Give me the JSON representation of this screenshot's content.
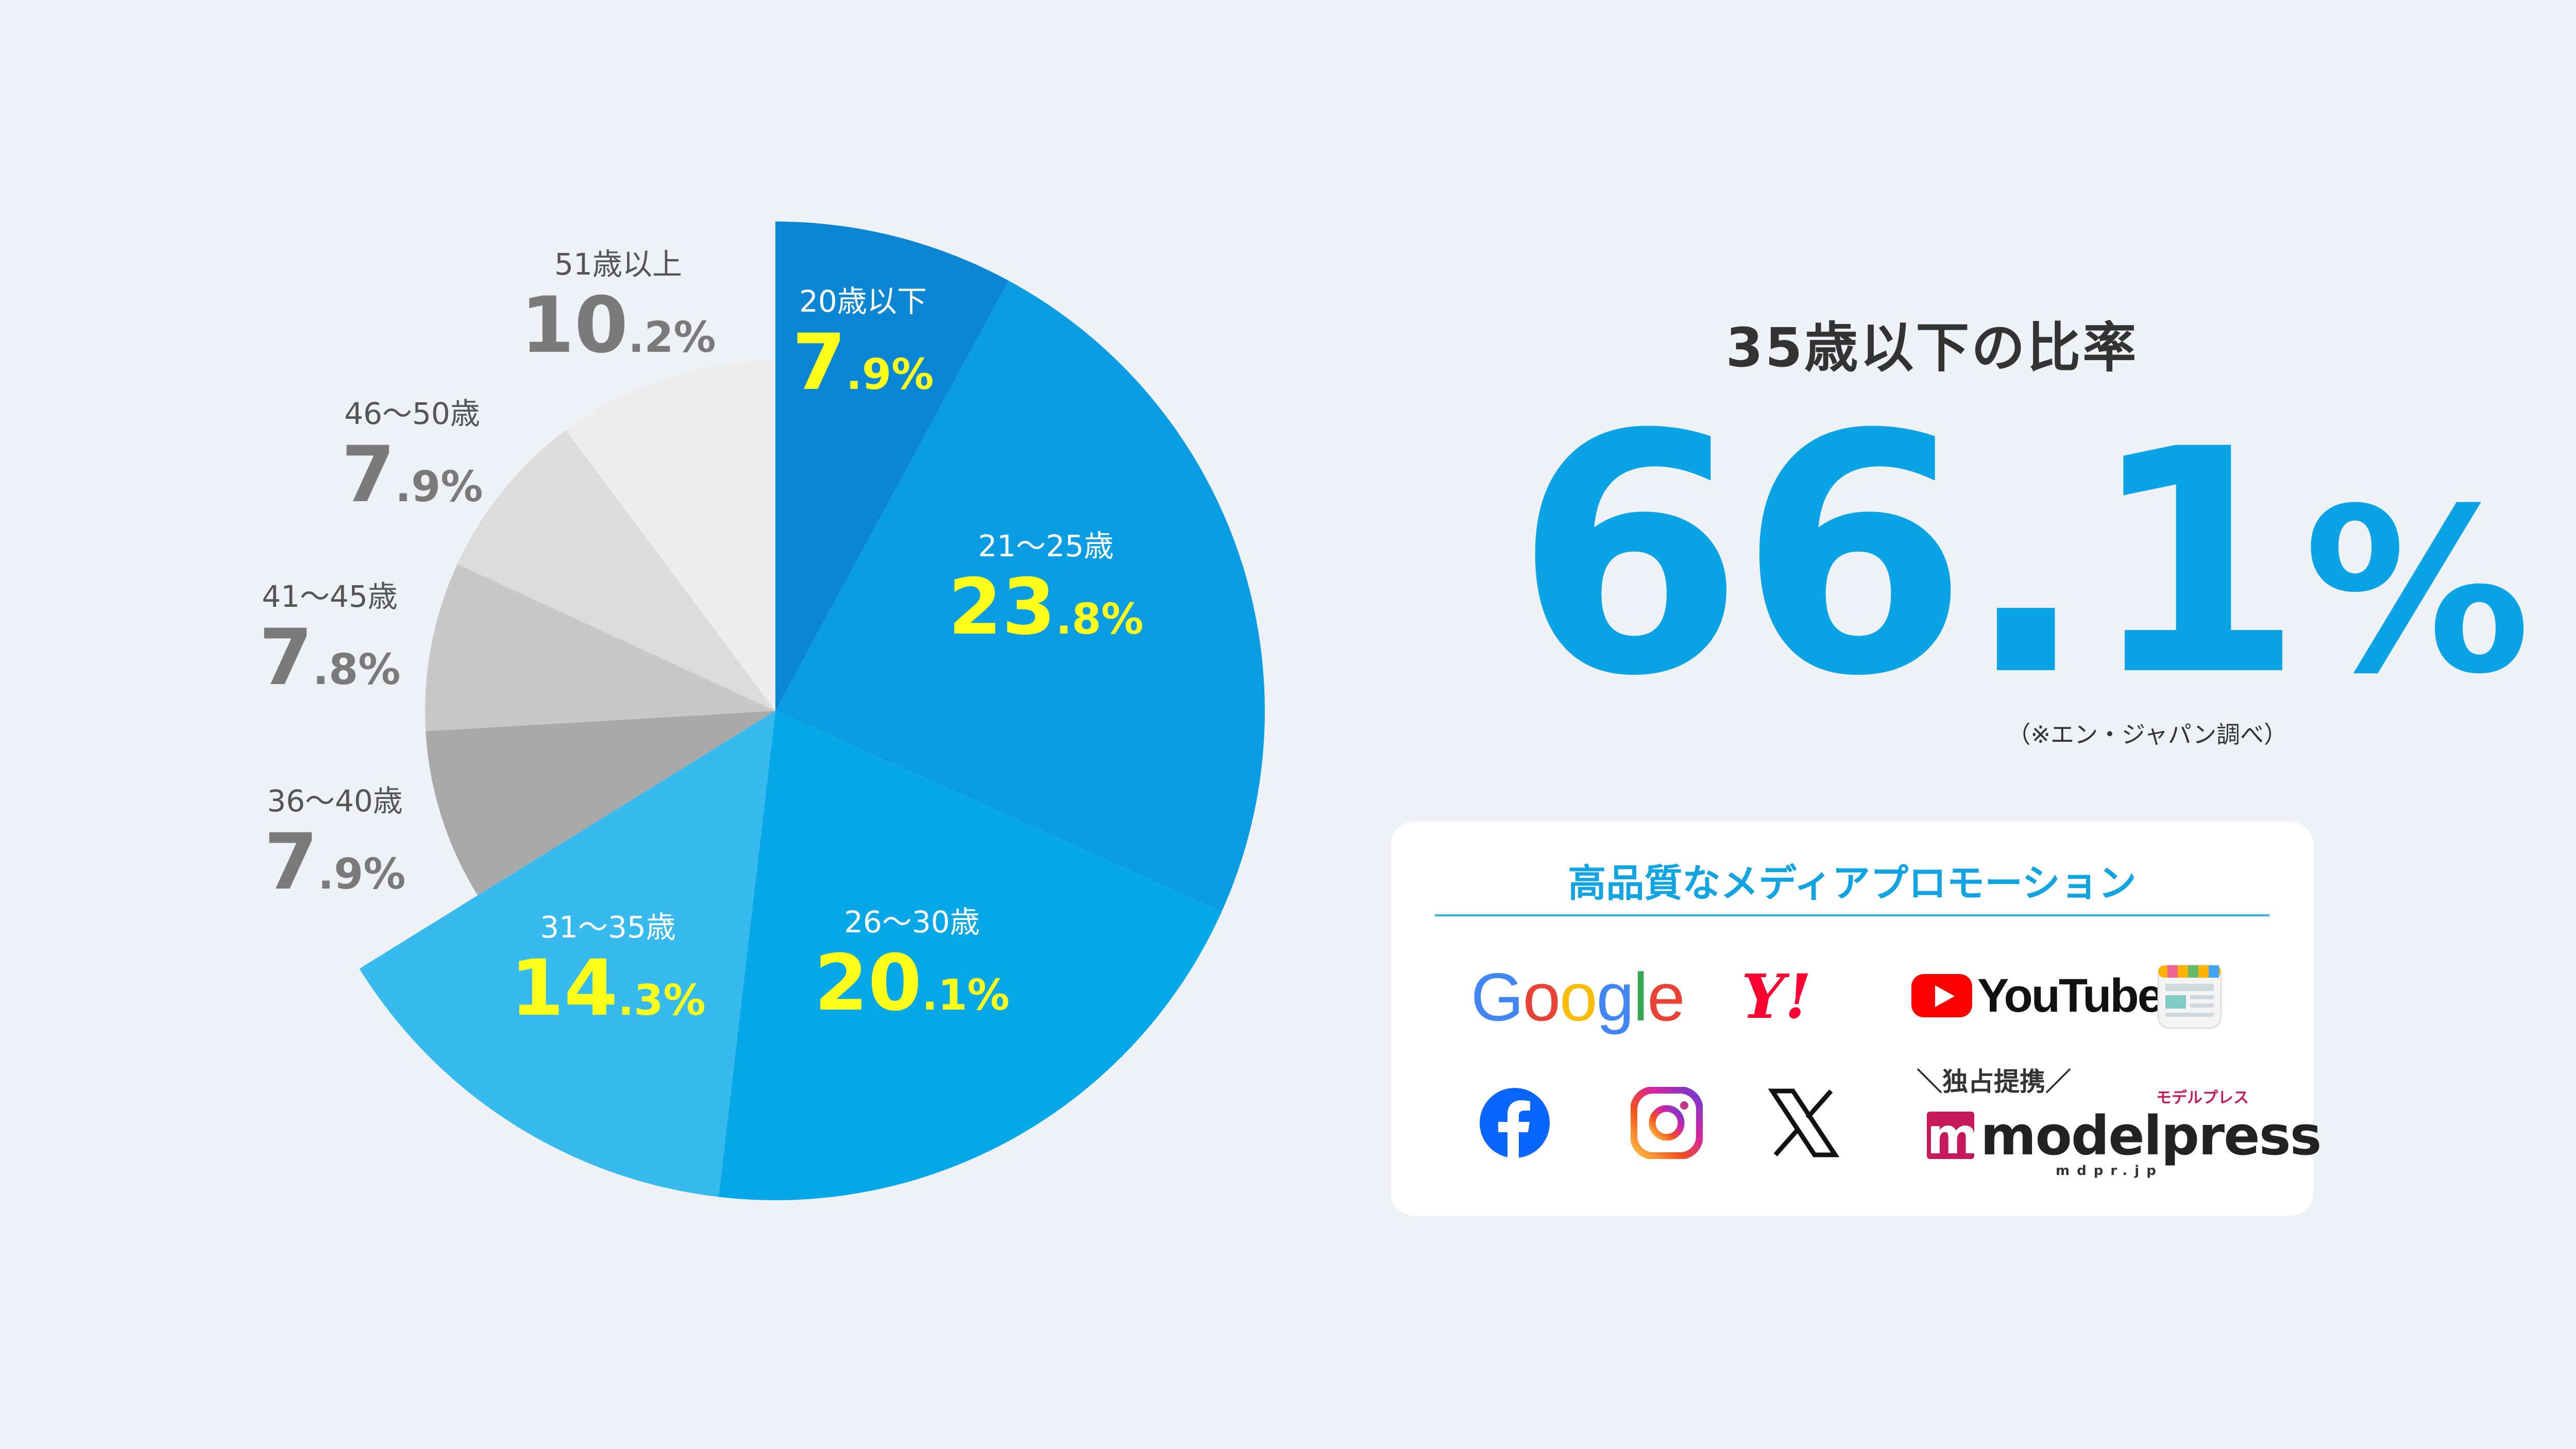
{
  "chart_data": {
    "type": "pie",
    "categories": [
      "20歳以下",
      "21〜25歳",
      "26〜30歳",
      "31〜35歳",
      "36〜40歳",
      "41〜45歳",
      "46〜50歳",
      "51歳以上"
    ],
    "values": [
      7.9,
      23.8,
      20.1,
      14.3,
      7.9,
      7.8,
      7.9,
      10.2
    ],
    "value_labels": [
      {
        "big": "7",
        "small": ".9%"
      },
      {
        "big": "23",
        "small": ".8%"
      },
      {
        "big": "20",
        "small": ".1%"
      },
      {
        "big": "14",
        "small": ".3%"
      },
      {
        "big": "7",
        "small": ".9%"
      },
      {
        "big": "7",
        "small": ".8%"
      },
      {
        "big": "7",
        "small": ".9%"
      },
      {
        "big": "10",
        "small": ".2%"
      }
    ],
    "colors": [
      "#0a86d4",
      "#0a9de3",
      "#06a8e8",
      "#37bbef",
      "#a9a9a9",
      "#c8c8c8",
      "#dcdcdc",
      "#ededed"
    ],
    "label_colors": {
      "highlight_category": "#ffffff",
      "highlight_value": "#ffff1a",
      "muted_category": "#555555",
      "muted_value": "#7a7a7a"
    },
    "highlighted_count": 4,
    "exploded": [
      "21〜25歳",
      "26〜30歳",
      "31〜35歳"
    ],
    "title": "",
    "legend": "none"
  },
  "summary": {
    "title": "35歳以下の比率",
    "value_int": "66",
    "value_dot": ".",
    "value_dec": "1",
    "value_pct": "%",
    "note": "（※エン・ジャパン調べ）",
    "accent_color": "#0aa3e6"
  },
  "media": {
    "title": "高品質なメディアプロモーション",
    "logos": {
      "google": [
        "G",
        "o",
        "o",
        "g",
        "l",
        "e"
      ],
      "google_colors": [
        "#4285f4",
        "#ea4335",
        "#fbbc05",
        "#4285f4",
        "#34a853",
        "#ea4335"
      ],
      "yahoo": "Y!",
      "youtube": "YouTube",
      "news_icon": "news-icon",
      "facebook_icon": "facebook-icon",
      "instagram_icon": "instagram-icon",
      "x_icon": "x-icon"
    },
    "exclusive": "＼独占提携／",
    "modelpress": "modelpress",
    "modelpress_kana": "モデルプレス",
    "modelpress_domain": "mdpr.jp"
  }
}
